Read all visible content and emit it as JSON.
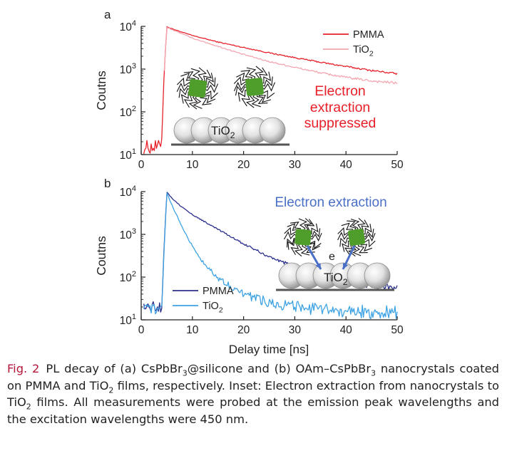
{
  "figure": {
    "caption": {
      "label": "Fig. 2",
      "parts": [
        {
          "t": "PL decay of (a) CsPbBr"
        },
        {
          "sub": "3"
        },
        {
          "t": "@silicone and (b) OAm–CsPbBr"
        },
        {
          "sub": "3"
        },
        {
          "t": " nano­crystals coated on PMMA and TiO"
        },
        {
          "sub": "2"
        },
        {
          "t": " films, respectively. Inset: Electron extraction from nanocrystals to TiO"
        },
        {
          "sub": "2"
        },
        {
          "t": " films. All measurements were probed at the emission peak wavelengths and the excitation wavelengths were 450 nm."
        }
      ]
    },
    "shared_xlabel": "Delay time [ns]",
    "colors": {
      "axis": "#222222",
      "particle_fill": "#dcdcdc",
      "nanocrystal": "#4f9e2c",
      "ligand": "#111111"
    }
  },
  "chart_data": [
    {
      "type": "line",
      "panel_label": "a",
      "ylabel": "Coutns",
      "xlabel": "",
      "xlim": [
        0,
        50
      ],
      "ylim": [
        10,
        10000
      ],
      "yscale": "log",
      "x_ticks": [
        0,
        10,
        20,
        30,
        40,
        50
      ],
      "y_ticks": [
        10,
        100,
        1000,
        10000
      ],
      "legend_position": "top-right",
      "series": [
        {
          "name": "PMMA",
          "color": "#e8202a",
          "x": [
            0.5,
            2,
            3.5,
            4.0,
            4.5,
            5.0,
            6,
            8,
            10,
            15,
            20,
            25,
            30,
            35,
            40,
            45,
            50
          ],
          "y": [
            15,
            15,
            15,
            22,
            900,
            9800,
            8800,
            7300,
            6100,
            4300,
            3200,
            2400,
            1850,
            1450,
            1150,
            930,
            780
          ]
        },
        {
          "name": "TiO2",
          "name_base": "TiO",
          "name_sub": "2",
          "color": "#f2a6b0",
          "x": [
            4.5,
            5.0,
            6,
            8,
            10,
            15,
            20,
            25,
            30,
            35,
            40,
            45,
            50
          ],
          "y": [
            900,
            9500,
            8400,
            6700,
            5300,
            3400,
            2200,
            1500,
            1100,
            820,
            640,
            530,
            470
          ]
        }
      ],
      "annotations": [
        {
          "text": "Electron",
          "color": "#e8202a"
        },
        {
          "text": "extraction",
          "color": "#e8202a"
        },
        {
          "text": "suppressed",
          "color": "#e8202a"
        }
      ],
      "inset_label": {
        "base": "TiO",
        "sub": "2"
      }
    },
    {
      "type": "line",
      "panel_label": "b",
      "ylabel": "Coutns",
      "xlabel": "Delay time [ns]",
      "xlim": [
        0,
        50
      ],
      "ylim": [
        10,
        10000
      ],
      "yscale": "log",
      "x_ticks": [
        0,
        10,
        20,
        30,
        40,
        50
      ],
      "y_ticks": [
        10,
        100,
        1000,
        10000
      ],
      "legend_position": "bottom-left",
      "series": [
        {
          "name": "PMMA",
          "color": "#2b2f8c",
          "x": [
            0.5,
            2,
            4.0,
            4.5,
            5.0,
            6,
            8,
            10,
            15,
            20,
            25,
            30,
            35,
            40,
            45,
            50
          ],
          "y": [
            20,
            20,
            20,
            600,
            9800,
            7000,
            4300,
            2900,
            1300,
            600,
            300,
            170,
            110,
            80,
            65,
            58
          ]
        },
        {
          "name": "TiO2",
          "name_base": "TiO",
          "name_sub": "2",
          "color": "#3ea3e3",
          "x": [
            0.5,
            2,
            4.0,
            4.5,
            5.0,
            6,
            8,
            10,
            12,
            15,
            20,
            25,
            30,
            35,
            40,
            45,
            50
          ],
          "y": [
            18,
            18,
            18,
            500,
            9300,
            4800,
            1500,
            520,
            230,
            95,
            40,
            26,
            20,
            17,
            16,
            15,
            15
          ]
        }
      ],
      "annotations": [
        {
          "text": "Electron extraction",
          "color": "#4a6fc6"
        },
        {
          "text": "e",
          "color": "#222222"
        }
      ],
      "inset_label": {
        "base": "TiO",
        "sub": "2"
      }
    }
  ]
}
